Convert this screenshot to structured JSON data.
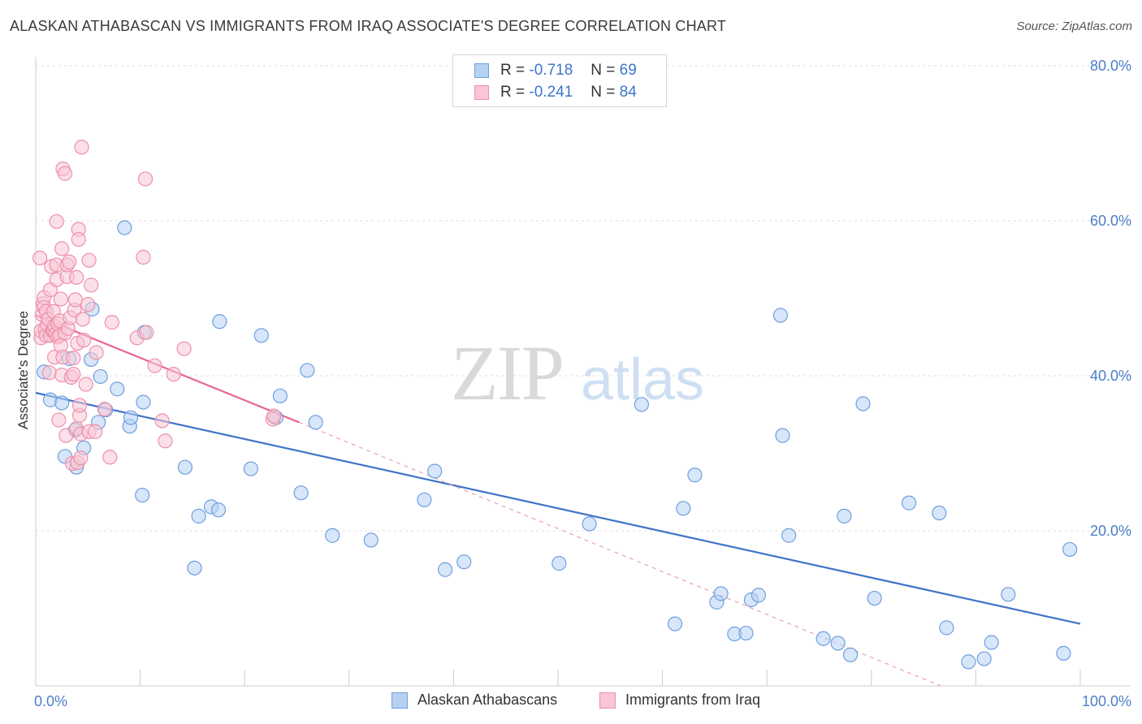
{
  "title": "ALASKAN ATHABASCAN VS IMMIGRANTS FROM IRAQ ASSOCIATE'S DEGREE CORRELATION CHART",
  "source": "Source: ZipAtlas.com",
  "watermark": {
    "zip": "ZIP",
    "atlas": "atlas"
  },
  "legend": {
    "r_label": "R =",
    "n_label": "N =",
    "rows": [
      {
        "r": "-0.718",
        "n": "69",
        "color": "#6f9fe0",
        "fill": "#b7d1f3"
      },
      {
        "r": "-0.241",
        "n": "84",
        "color": "#ee8fab",
        "fill": "#f8c6d5"
      }
    ]
  },
  "bottom_legend": [
    {
      "label": "Alaskan Athabascans",
      "color": "#6f9fe0",
      "fill": "#b7d1f3"
    },
    {
      "label": "Immigrants from Iraq",
      "color": "#ee8fab",
      "fill": "#f8c6d5"
    }
  ],
  "chart_data": {
    "type": "scatter",
    "title": "ALASKAN ATHABASCAN VS IMMIGRANTS FROM IRAQ ASSOCIATE'S DEGREE CORRELATION CHART",
    "xlabel": "",
    "ylabel": "Associate's Degree",
    "xlim": [
      0,
      100
    ],
    "ylim": [
      0,
      82
    ],
    "x_tick_labels": [
      {
        "value": 0,
        "label": "0.0%"
      },
      {
        "value": 100,
        "label": "100.0%"
      }
    ],
    "y_tick_labels": [
      {
        "value": 20,
        "label": "20.0%"
      },
      {
        "value": 40,
        "label": "40.0%"
      },
      {
        "value": 60,
        "label": "60.0%"
      },
      {
        "value": 80,
        "label": "80.0%"
      }
    ],
    "grid": "horizontal dashed",
    "series": [
      {
        "name": "Alaskan Athabascans",
        "color": "#6f9fe0",
        "fill": "#b7d1f3",
        "trend": {
          "x": [
            0,
            100
          ],
          "y": [
            37.8,
            8.0
          ],
          "style": "solid"
        },
        "points": [
          [
            0.8,
            40.5
          ],
          [
            1.4,
            36.9
          ],
          [
            2.5,
            36.5
          ],
          [
            2.8,
            29.6
          ],
          [
            3.2,
            42.2
          ],
          [
            3.8,
            33.0
          ],
          [
            3.9,
            28.2
          ],
          [
            4.6,
            30.7
          ],
          [
            5.3,
            42.1
          ],
          [
            5.4,
            48.6
          ],
          [
            6.0,
            34.0
          ],
          [
            6.2,
            39.9
          ],
          [
            6.7,
            35.6
          ],
          [
            7.8,
            38.3
          ],
          [
            8.5,
            59.1
          ],
          [
            9.0,
            33.5
          ],
          [
            9.1,
            34.6
          ],
          [
            10.2,
            24.6
          ],
          [
            10.3,
            36.6
          ],
          [
            10.4,
            45.6
          ],
          [
            14.3,
            28.2
          ],
          [
            15.2,
            15.2
          ],
          [
            15.6,
            21.9
          ],
          [
            16.8,
            23.1
          ],
          [
            17.5,
            22.7
          ],
          [
            17.6,
            47.0
          ],
          [
            20.6,
            28.0
          ],
          [
            21.6,
            45.2
          ],
          [
            23.0,
            34.6
          ],
          [
            23.4,
            37.4
          ],
          [
            25.4,
            24.9
          ],
          [
            26.0,
            40.7
          ],
          [
            26.8,
            34.0
          ],
          [
            28.4,
            19.4
          ],
          [
            32.1,
            18.8
          ],
          [
            37.2,
            24.0
          ],
          [
            38.2,
            27.7
          ],
          [
            39.2,
            15.0
          ],
          [
            41.0,
            16.0
          ],
          [
            50.1,
            15.8
          ],
          [
            53.0,
            20.9
          ],
          [
            58.0,
            36.3
          ],
          [
            61.2,
            8.0
          ],
          [
            62.0,
            22.9
          ],
          [
            63.1,
            27.2
          ],
          [
            65.2,
            10.8
          ],
          [
            65.6,
            11.9
          ],
          [
            66.9,
            6.7
          ],
          [
            68.0,
            6.8
          ],
          [
            68.5,
            11.1
          ],
          [
            69.2,
            11.7
          ],
          [
            71.3,
            47.8
          ],
          [
            71.5,
            32.3
          ],
          [
            72.1,
            19.4
          ],
          [
            75.4,
            6.1
          ],
          [
            76.8,
            5.5
          ],
          [
            77.4,
            21.9
          ],
          [
            78.0,
            4.0
          ],
          [
            79.2,
            36.4
          ],
          [
            80.3,
            11.3
          ],
          [
            83.6,
            23.6
          ],
          [
            86.5,
            22.3
          ],
          [
            87.2,
            7.5
          ],
          [
            89.3,
            3.1
          ],
          [
            90.8,
            3.5
          ],
          [
            91.5,
            5.6
          ],
          [
            93.1,
            11.8
          ],
          [
            98.4,
            4.2
          ],
          [
            99.0,
            17.6
          ]
        ]
      },
      {
        "name": "Immigrants from Iraq",
        "color": "#ee8fab",
        "fill": "#f8c6d5",
        "trend": {
          "x": [
            0,
            25.2,
            100
          ],
          "y": [
            47.8,
            34.0,
            -7.4
          ],
          "style": "solid-then-dashed"
        },
        "points": [
          [
            0.4,
            55.2
          ],
          [
            0.5,
            44.9
          ],
          [
            0.5,
            45.8
          ],
          [
            0.6,
            47.9
          ],
          [
            0.7,
            49.3
          ],
          [
            0.8,
            50.1
          ],
          [
            0.8,
            48.8
          ],
          [
            0.9,
            46.0
          ],
          [
            1.0,
            48.3
          ],
          [
            1.0,
            45.2
          ],
          [
            1.1,
            46.6
          ],
          [
            1.2,
            47.3
          ],
          [
            1.3,
            40.4
          ],
          [
            1.4,
            45.2
          ],
          [
            1.4,
            51.1
          ],
          [
            1.5,
            54.1
          ],
          [
            1.6,
            45.8
          ],
          [
            1.7,
            45.9
          ],
          [
            1.7,
            48.3
          ],
          [
            1.8,
            46.4
          ],
          [
            1.8,
            42.4
          ],
          [
            1.9,
            45.4
          ],
          [
            2.0,
            52.4
          ],
          [
            2.0,
            54.3
          ],
          [
            2.0,
            59.9
          ],
          [
            2.1,
            46.7
          ],
          [
            2.1,
            45.0
          ],
          [
            2.2,
            34.3
          ],
          [
            2.3,
            47.1
          ],
          [
            2.3,
            45.2
          ],
          [
            2.4,
            49.9
          ],
          [
            2.4,
            43.9
          ],
          [
            2.5,
            40.1
          ],
          [
            2.5,
            56.4
          ],
          [
            2.6,
            66.7
          ],
          [
            2.6,
            42.4
          ],
          [
            2.8,
            66.1
          ],
          [
            2.8,
            45.5
          ],
          [
            2.9,
            32.3
          ],
          [
            3.0,
            52.8
          ],
          [
            3.0,
            54.3
          ],
          [
            3.1,
            46.1
          ],
          [
            3.2,
            54.7
          ],
          [
            3.3,
            47.5
          ],
          [
            3.4,
            39.8
          ],
          [
            3.5,
            28.7
          ],
          [
            3.6,
            40.2
          ],
          [
            3.6,
            42.3
          ],
          [
            3.7,
            48.5
          ],
          [
            3.8,
            49.8
          ],
          [
            3.9,
            33.2
          ],
          [
            3.9,
            52.7
          ],
          [
            4.0,
            28.8
          ],
          [
            4.0,
            44.2
          ],
          [
            4.1,
            58.9
          ],
          [
            4.1,
            57.6
          ],
          [
            4.2,
            34.9
          ],
          [
            4.2,
            36.2
          ],
          [
            4.3,
            32.5
          ],
          [
            4.3,
            29.4
          ],
          [
            4.4,
            69.5
          ],
          [
            4.5,
            47.3
          ],
          [
            4.6,
            44.6
          ],
          [
            4.8,
            38.9
          ],
          [
            5.0,
            49.2
          ],
          [
            5.1,
            32.8
          ],
          [
            5.1,
            54.9
          ],
          [
            5.3,
            51.7
          ],
          [
            5.7,
            32.8
          ],
          [
            5.8,
            43.0
          ],
          [
            6.6,
            35.7
          ],
          [
            7.1,
            29.5
          ],
          [
            7.3,
            46.9
          ],
          [
            9.7,
            44.9
          ],
          [
            10.3,
            55.3
          ],
          [
            10.5,
            65.4
          ],
          [
            10.6,
            45.6
          ],
          [
            11.4,
            41.3
          ],
          [
            12.1,
            34.2
          ],
          [
            12.4,
            31.6
          ],
          [
            13.2,
            40.2
          ],
          [
            14.2,
            43.5
          ],
          [
            22.7,
            34.4
          ],
          [
            22.8,
            34.8
          ]
        ]
      }
    ]
  }
}
